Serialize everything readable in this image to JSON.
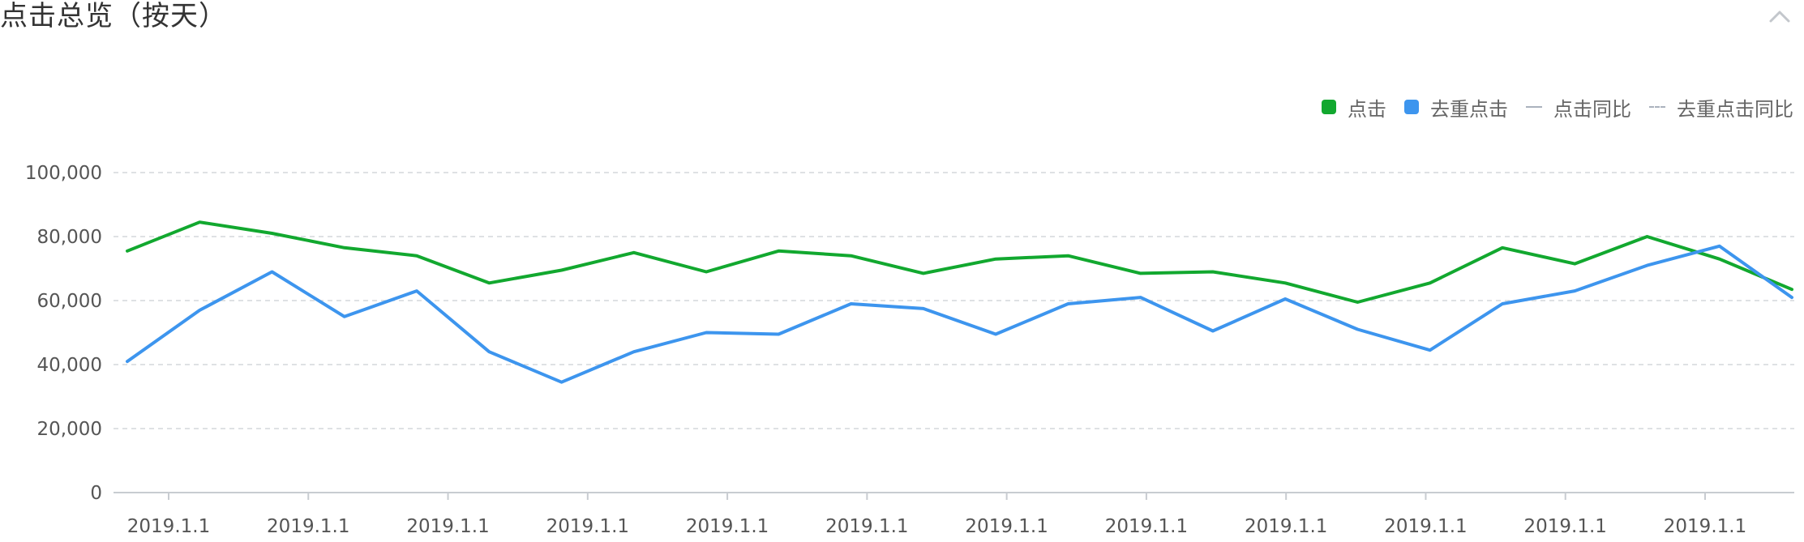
{
  "header": {
    "title": "点击总览（按天）",
    "collapse_icon": "chevron-up-icon"
  },
  "legend": {
    "items": [
      {
        "label": "点击",
        "kind": "swatch",
        "color": "#12a82f"
      },
      {
        "label": "去重点击",
        "kind": "swatch",
        "color": "#3d95ee"
      },
      {
        "label": "点击同比",
        "kind": "line",
        "color": "#aab2bd"
      },
      {
        "label": "去重点击同比",
        "kind": "dashed-line",
        "color": "#aab2bd"
      }
    ]
  },
  "chart_data": {
    "type": "line",
    "title": "",
    "xlabel": "",
    "ylabel": "",
    "ylim": [
      0,
      100000
    ],
    "yticks": [
      0,
      20000,
      40000,
      60000,
      80000,
      100000
    ],
    "ytick_labels": [
      "0",
      "20,000",
      "40,000",
      "60,000",
      "80,000",
      "100,000"
    ],
    "grid": "horizontal-dashed",
    "legend_position": "top-right",
    "x_tick_labels": [
      "2019.1.1",
      "2019.1.1",
      "2019.1.1",
      "2019.1.1",
      "2019.1.1",
      "2019.1.1",
      "2019.1.1",
      "2019.1.1",
      "2019.1.1",
      "2019.1.1",
      "2019.1.1",
      "2019.1.1"
    ],
    "series": [
      {
        "name": "点击",
        "color": "#12a82f",
        "values": [
          75500,
          84500,
          81000,
          76500,
          74000,
          65500,
          69500,
          75000,
          69000,
          75500,
          74000,
          68500,
          73000,
          74000,
          68500,
          69000,
          65500,
          59500,
          65500,
          76500,
          71500,
          80000,
          73000,
          63500
        ]
      },
      {
        "name": "去重点击",
        "color": "#3d95ee",
        "values": [
          41000,
          57000,
          69000,
          55000,
          63000,
          44000,
          34500,
          44000,
          50000,
          49500,
          59000,
          57500,
          49500,
          59000,
          61000,
          50500,
          60500,
          51000,
          44500,
          59000,
          63000,
          71000,
          77000,
          61000
        ]
      }
    ]
  }
}
